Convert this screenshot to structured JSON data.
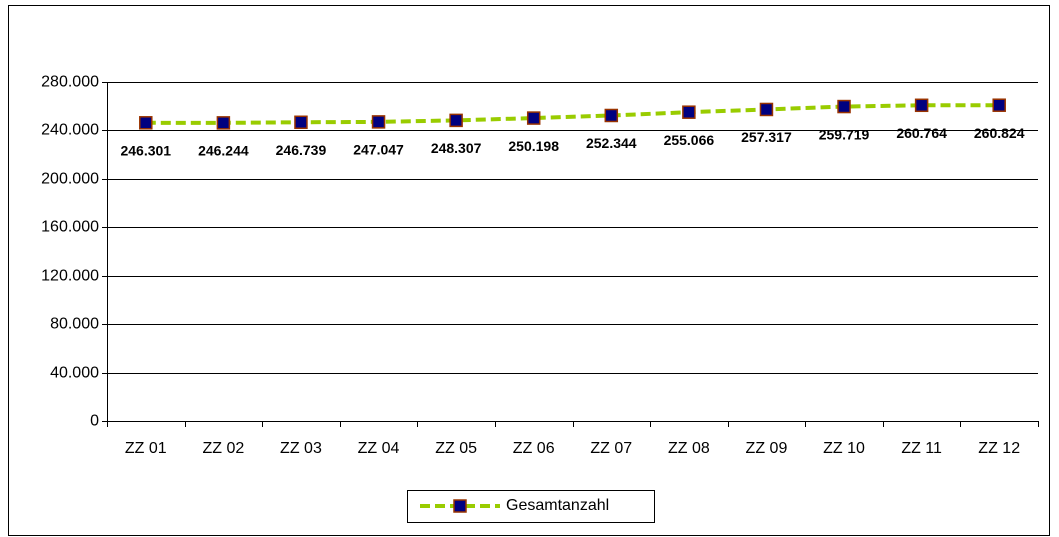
{
  "chart_data": {
    "type": "line",
    "categories": [
      "ZZ 01",
      "ZZ 02",
      "ZZ 03",
      "ZZ 04",
      "ZZ 05",
      "ZZ 06",
      "ZZ 07",
      "ZZ 08",
      "ZZ 09",
      "ZZ 10",
      "ZZ 11",
      "ZZ 12"
    ],
    "series": [
      {
        "name": "Gesamtanzahl",
        "color": "#99cc00",
        "marker_color": "#000080",
        "marker_edge": "#993300",
        "values": [
          246301,
          246244,
          246739,
          247047,
          248307,
          250198,
          252344,
          255066,
          257317,
          259719,
          260764,
          260824
        ],
        "value_labels": [
          "246.301",
          "246.244",
          "246.739",
          "247.047",
          "248.307",
          "250.198",
          "252.344",
          "255.066",
          "257.317",
          "259.719",
          "260.764",
          "260.824"
        ]
      }
    ],
    "ylim": [
      0,
      280000
    ],
    "yticks": [
      0,
      {
        "value": 40000,
        "label": "40.000"
      },
      {
        "value": 80000,
        "label": "80.000"
      },
      {
        "value": 120000,
        "label": "120.000"
      },
      {
        "value": 160000,
        "label": "160.000"
      },
      {
        "value": 200000,
        "label": "200.000"
      },
      {
        "value": 240000,
        "label": "240.000"
      },
      {
        "value": 280000,
        "label": "280.000"
      }
    ],
    "grid": true,
    "legend": "bottom"
  }
}
